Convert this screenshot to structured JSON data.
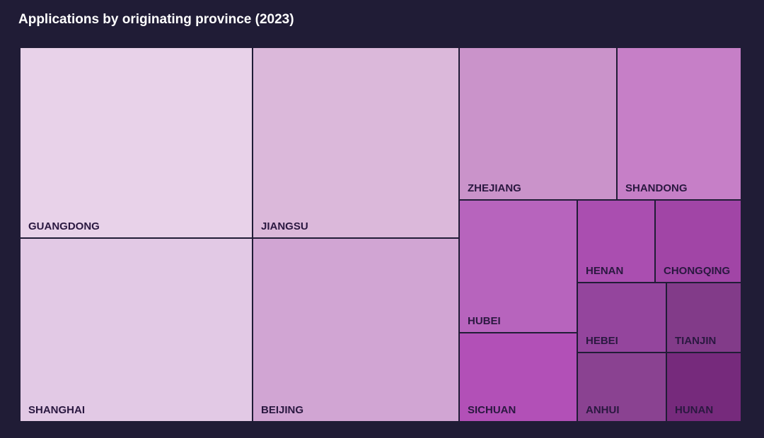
{
  "chart_data": {
    "type": "treemap",
    "title": "Applications by originating province (2023)",
    "items": [
      {
        "name": "GUANGDONG",
        "value": 177,
        "color": "#e8d2e9"
      },
      {
        "name": "SHANGHAI",
        "value": 167,
        "color": "#e2c9e5"
      },
      {
        "name": "JIANGSU",
        "value": 156,
        "color": "#dbb8da"
      },
      {
        "name": "BEIJING",
        "value": 150,
        "color": "#d1a5d3"
      },
      {
        "name": "ZHEJIANG",
        "value": 94,
        "color": "#ca93ca"
      },
      {
        "name": "SHANDONG",
        "value": 75,
        "color": "#c67fc7"
      },
      {
        "name": "HUBEI",
        "value": 62,
        "color": "#b764bd"
      },
      {
        "name": "SICHUAN",
        "value": 41,
        "color": "#b250b7"
      },
      {
        "name": "HENAN",
        "value": 34,
        "color": "#aa4eb0"
      },
      {
        "name": "CHONGQING",
        "value": 32,
        "color": "#a145a6"
      },
      {
        "name": "HEBEI",
        "value": 27,
        "color": "#94459d"
      },
      {
        "name": "TIANJIN",
        "value": 22,
        "color": "#823b89"
      },
      {
        "name": "ANHUI",
        "value": 27,
        "color": "#8a4291"
      },
      {
        "name": "HUNAN",
        "value": 22,
        "color": "#762a7c"
      }
    ]
  }
}
